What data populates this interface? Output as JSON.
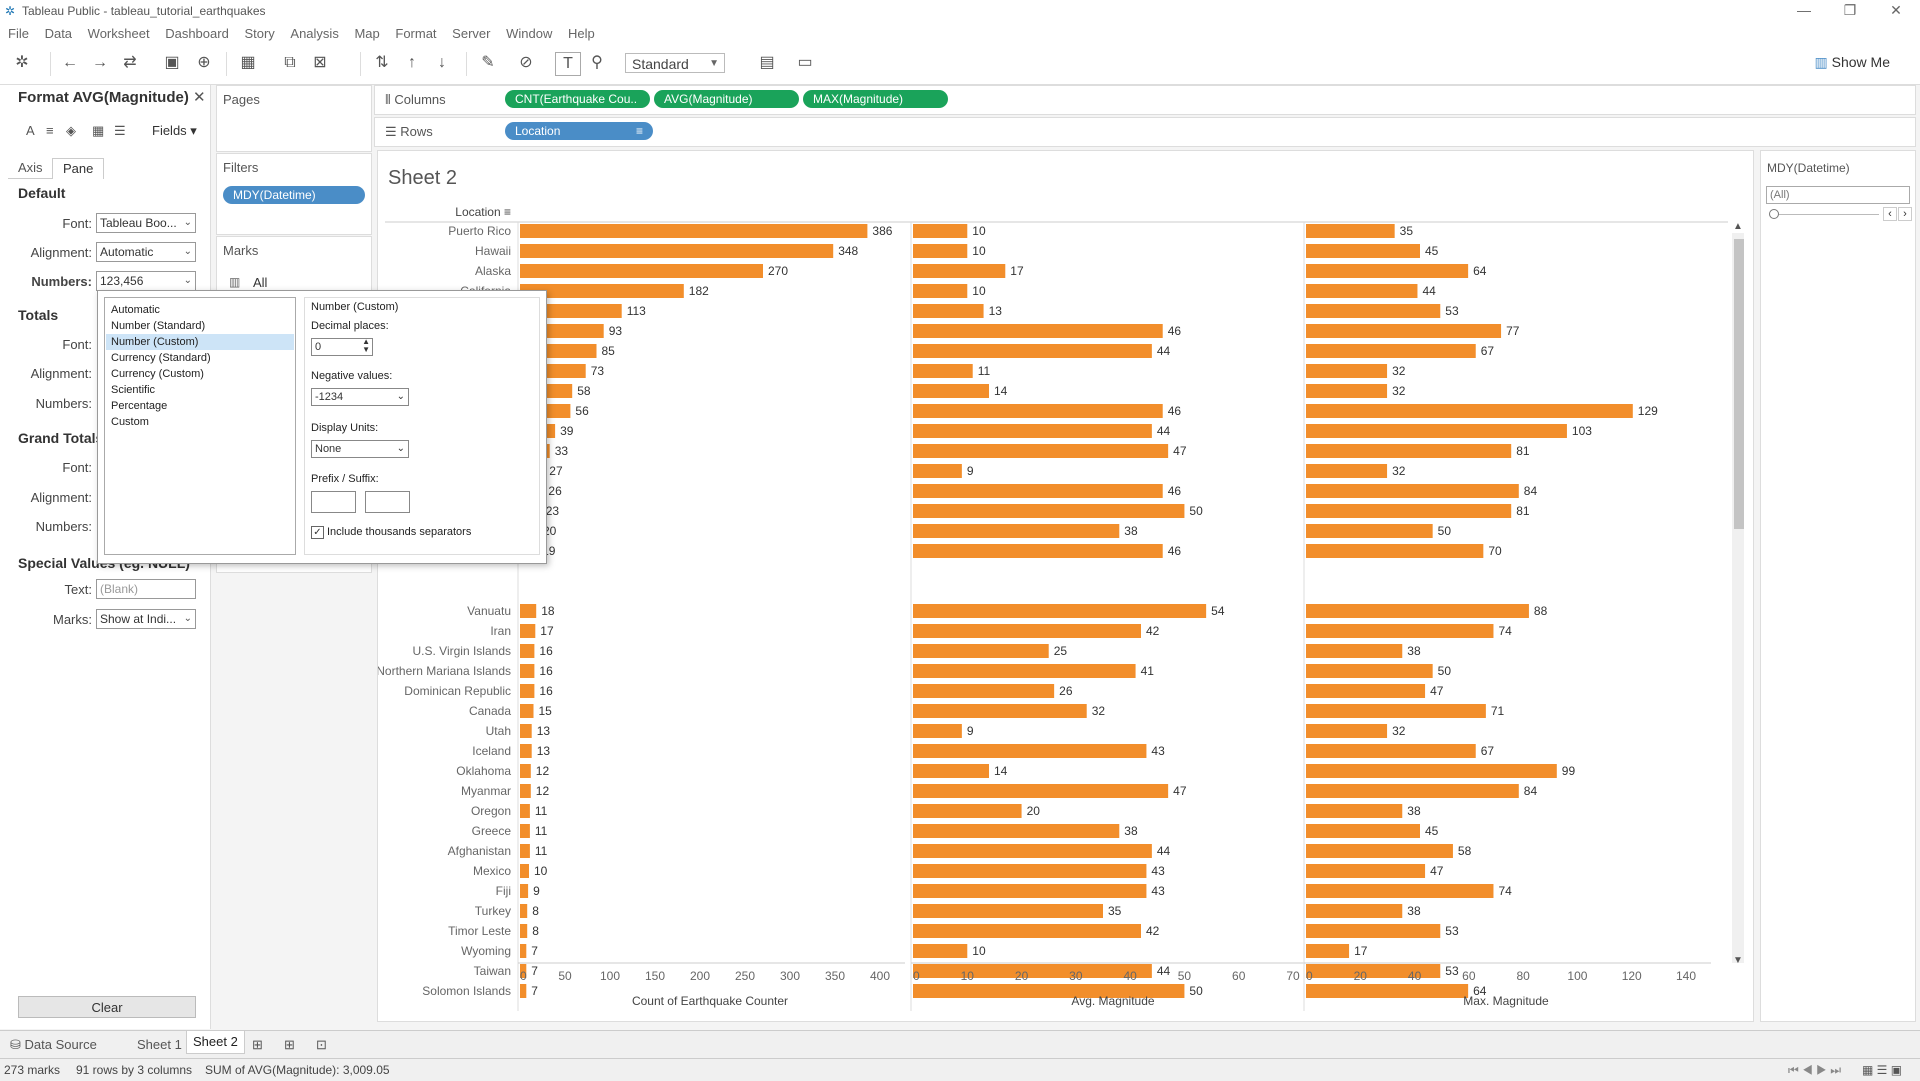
{
  "window": {
    "title": "Tableau Public - tableau_tutorial_earthquakes"
  },
  "menu": [
    "File",
    "Data",
    "Worksheet",
    "Dashboard",
    "Story",
    "Analysis",
    "Map",
    "Format",
    "Server",
    "Window",
    "Help"
  ],
  "toolbar": {
    "standard_label": "Standard",
    "show_me_label": "Show Me"
  },
  "format_pane": {
    "title": "Format AVG(Magnitude)",
    "fields_label": "Fields",
    "tabs": [
      "Axis",
      "Pane"
    ],
    "default_head": "Default",
    "font_label": "Font:",
    "font_value": "Tableau Boo...",
    "alignment_label": "Alignment:",
    "alignment_value": "Automatic",
    "numbers_label": "Numbers:",
    "numbers_value": "123,456",
    "totals_head": "Totals",
    "totals_font_label": "Font:",
    "totals_alignment_label": "Alignment:",
    "totals_numbers_label": "Numbers:",
    "grand_totals_head": "Grand Totals",
    "gt_font_label": "Font:",
    "gt_alignment_label": "Alignment:",
    "gt_numbers_label": "Numbers:",
    "special_head": "Special Values (eg. NULL)",
    "text_label": "Text:",
    "text_placeholder": "(Blank)",
    "marks_label": "Marks:",
    "marks_value": "Show at Indi...",
    "clear_label": "Clear"
  },
  "number_popup": {
    "types": [
      "Automatic",
      "Number (Standard)",
      "Number (Custom)",
      "Currency (Standard)",
      "Currency (Custom)",
      "Scientific",
      "Percentage",
      "Custom"
    ],
    "selected_index": 2,
    "panel_title": "Number (Custom)",
    "decimal_label": "Decimal places:",
    "decimal_value": "0",
    "negative_label": "Negative values:",
    "negative_value": "-1234",
    "units_label": "Display Units:",
    "units_value": "None",
    "prefix_label": "Prefix / Suffix:",
    "thousands_label": "Include thousands separators",
    "thousands_checked": true
  },
  "shelves": {
    "pages_label": "Pages",
    "filters_label": "Filters",
    "filter_pill": "MDY(Datetime)",
    "marks_label": "Marks",
    "marks_all": "All",
    "columns_label": "Columns",
    "column_pills": [
      "CNT(Earthquake Cou..",
      "AVG(Magnitude)",
      "MAX(Magnitude)"
    ],
    "rows_label": "Rows",
    "row_pill": "Location"
  },
  "sheet": {
    "title": "Sheet 2",
    "location_header": "Location"
  },
  "right_pane": {
    "filter_title": "MDY(Datetime)",
    "filter_value": "(All)"
  },
  "chart_data": {
    "type": "bar",
    "categories": [
      "Puerto Rico",
      "Hawaii",
      "Alaska",
      "California",
      "",
      "",
      "",
      "",
      "",
      "",
      "",
      "",
      "",
      "",
      "",
      "",
      "",
      "",
      "",
      "Vanuatu",
      "Iran",
      "U.S. Virgin Islands",
      "Northern Mariana Islands",
      "Dominican Republic",
      "Canada",
      "Utah",
      "Iceland",
      "Oklahoma",
      "Myanmar",
      "Oregon",
      "Greece",
      "Afghanistan",
      "Mexico",
      "Fiji",
      "Turkey",
      "Timor Leste",
      "Wyoming",
      "Taiwan",
      "Solomon Islands"
    ],
    "series": [
      {
        "name": "Count of Earthquake Counter",
        "values": [
          386,
          348,
          270,
          182,
          113,
          93,
          85,
          73,
          58,
          56,
          39,
          33,
          27,
          26,
          23,
          20,
          19,
          null,
          null,
          18,
          17,
          16,
          16,
          16,
          15,
          13,
          13,
          12,
          12,
          11,
          11,
          11,
          10,
          9,
          8,
          8,
          7,
          7,
          7
        ],
        "xlim": [
          0,
          400
        ],
        "ticks": [
          "0",
          "50",
          "100",
          "150",
          "200",
          "250",
          "300",
          "350",
          "400"
        ]
      },
      {
        "name": "Avg. Magnitude",
        "values": [
          10,
          10,
          17,
          10,
          13,
          46,
          44,
          11,
          14,
          46,
          44,
          47,
          9,
          46,
          50,
          38,
          46,
          null,
          null,
          54,
          42,
          25,
          41,
          26,
          32,
          9,
          43,
          14,
          47,
          20,
          38,
          44,
          43,
          43,
          35,
          42,
          10,
          44,
          50
        ],
        "xlim": [
          0,
          70
        ],
        "ticks": [
          "0",
          "10",
          "20",
          "30",
          "40",
          "50",
          "60",
          "70"
        ]
      },
      {
        "name": "Max. Magnitude",
        "values": [
          35,
          45,
          64,
          44,
          53,
          77,
          67,
          32,
          32,
          129,
          103,
          81,
          32,
          84,
          81,
          50,
          70,
          null,
          null,
          88,
          74,
          38,
          50,
          47,
          71,
          32,
          67,
          99,
          84,
          38,
          45,
          58,
          47,
          74,
          38,
          53,
          17,
          53,
          64
        ],
        "xlim": [
          0,
          150
        ],
        "ticks": [
          "0",
          "20",
          "40",
          "60",
          "80",
          "100",
          "120",
          "140"
        ]
      }
    ],
    "bar_color": "#f28e2b"
  },
  "sheet_tabs": {
    "data_source": "Data Source",
    "sheet1": "Sheet 1",
    "sheet2": "Sheet 2"
  },
  "status": {
    "marks": "273 marks",
    "rows_cols": "91 rows by 3 columns",
    "sum": "SUM of AVG(Magnitude): 3,009.05"
  }
}
